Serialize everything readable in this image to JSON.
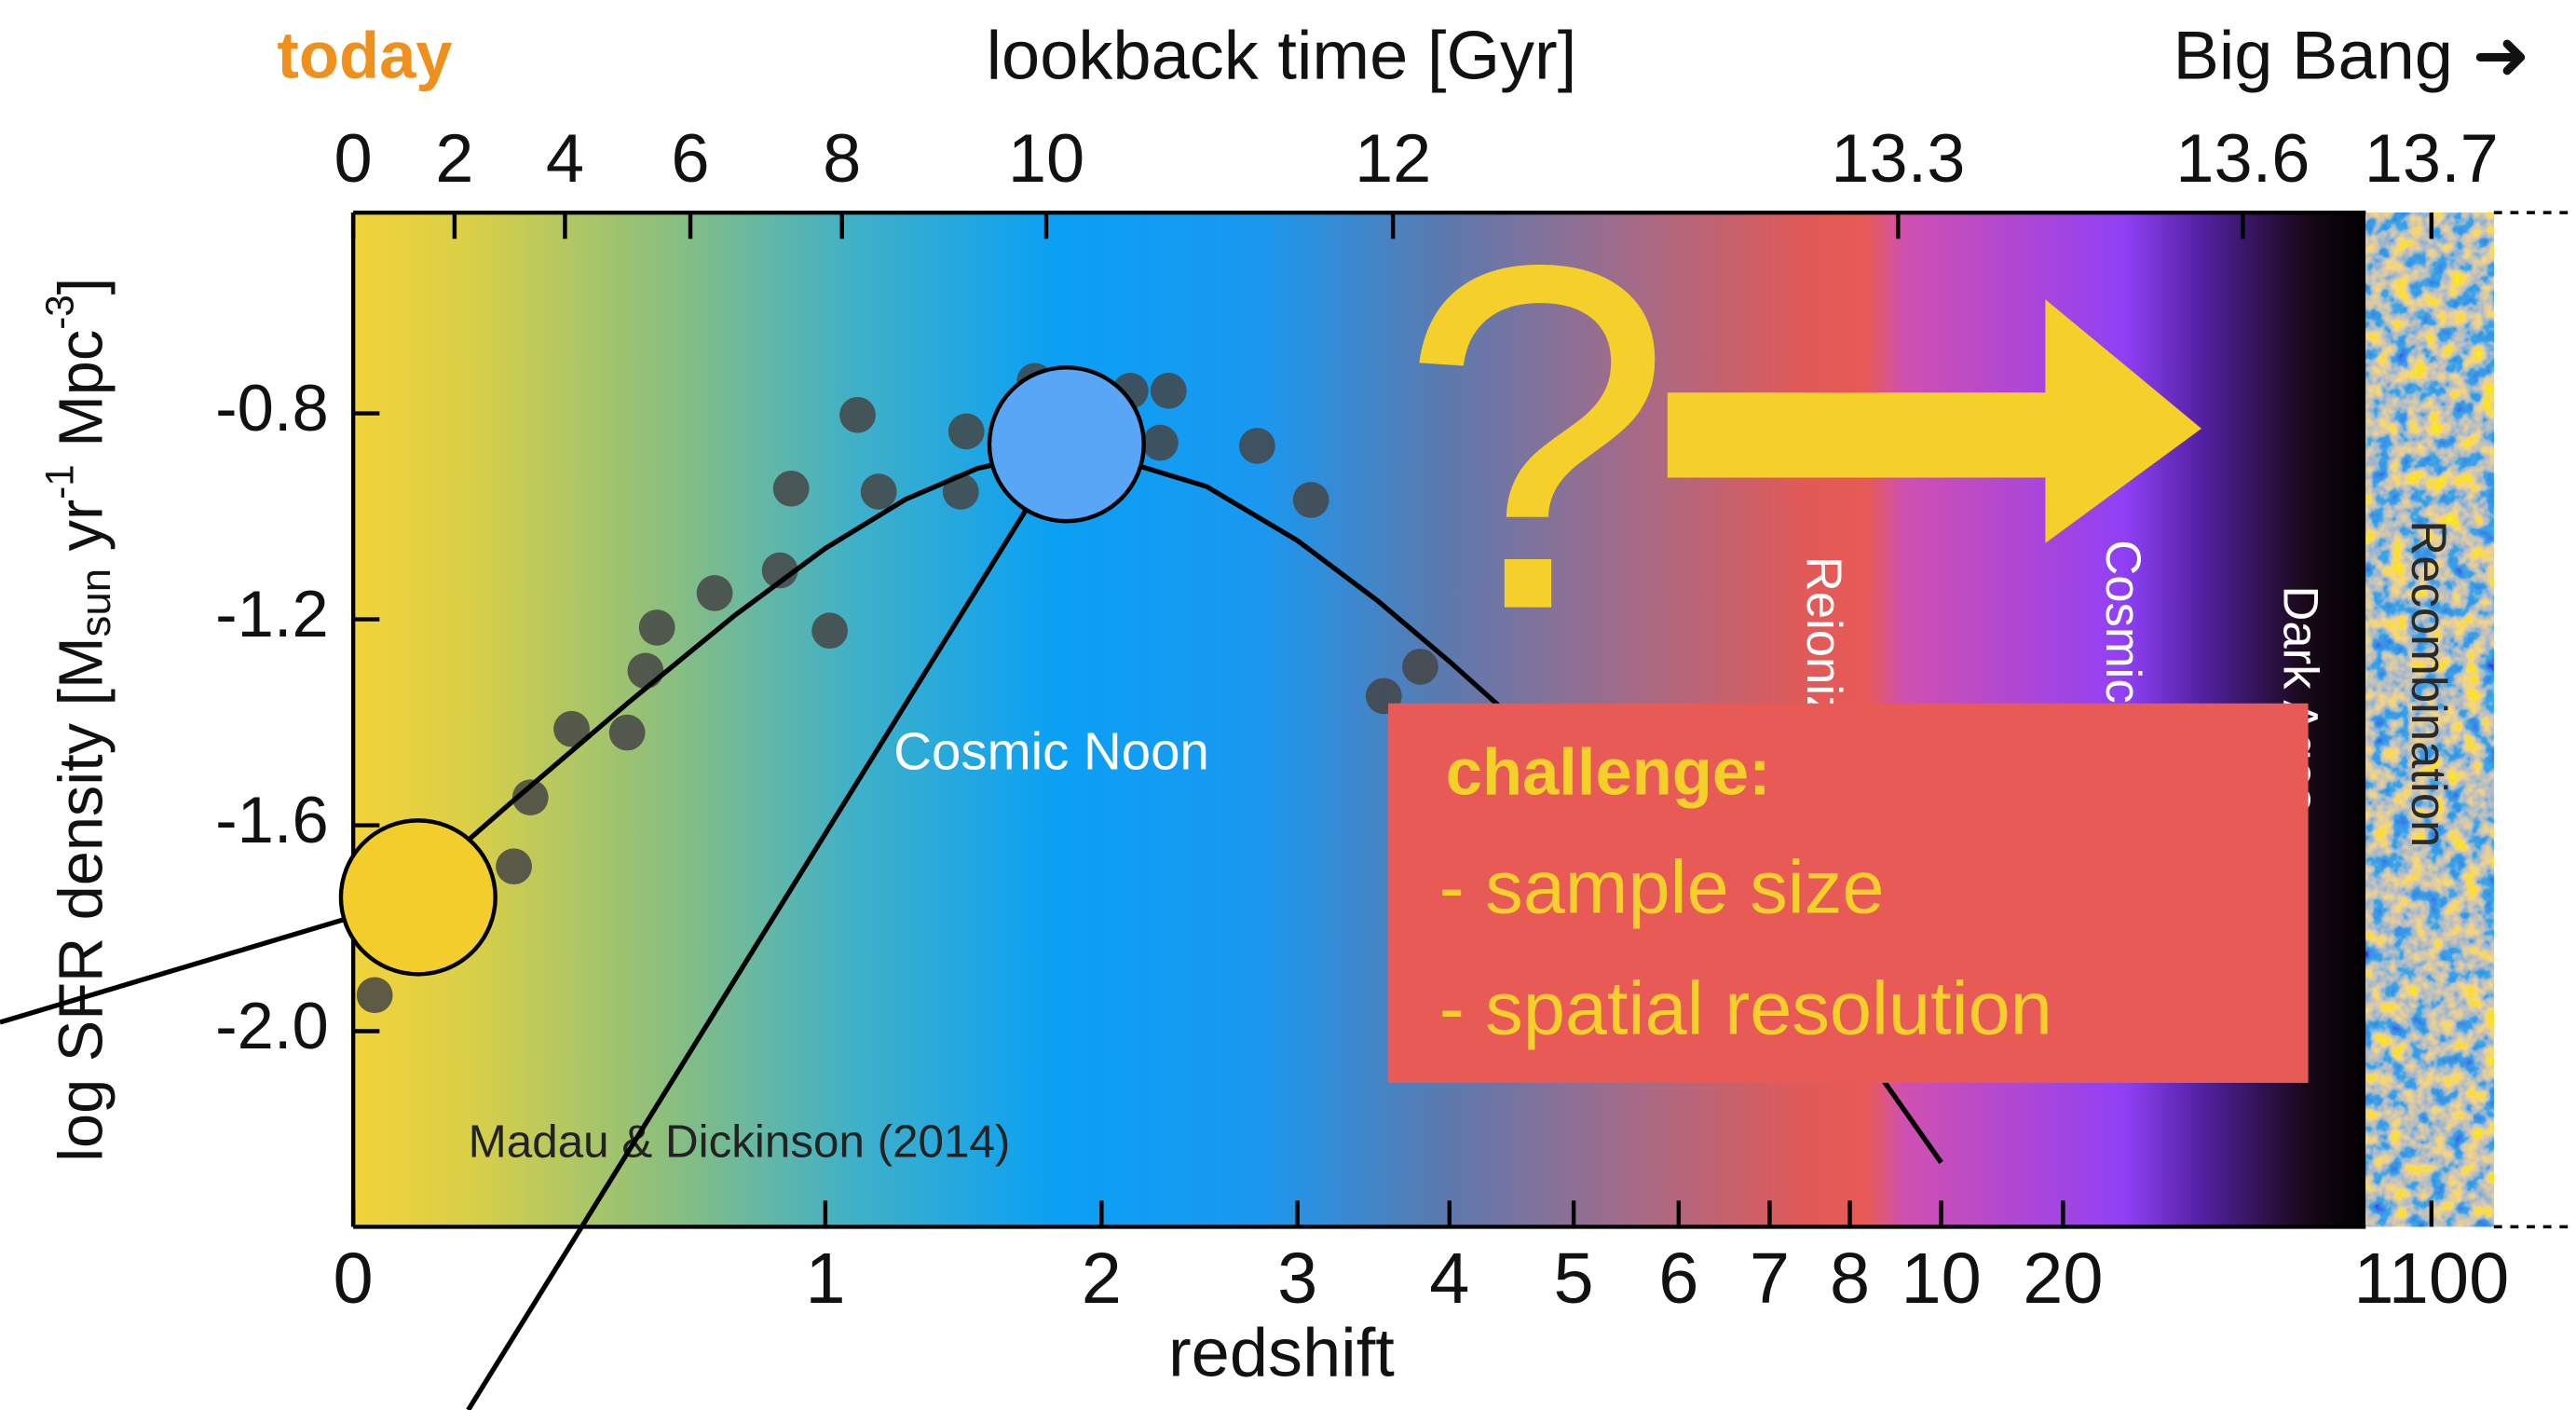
{
  "chart_data": {
    "type": "scatter",
    "xlabel": "redshift",
    "ylabel": [
      "log  SFR density  [M",
      "sun",
      " yr",
      "-1",
      " Mpc",
      "-3",
      "]"
    ],
    "x2label": "lookback time [Gyr]",
    "x2_left_label": "today",
    "x2_right_label": "Big Bang ➜",
    "xlim": [
      0,
      1100
    ],
    "xbreak": 8,
    "xticks": [
      0,
      1,
      2,
      3,
      4,
      5,
      6,
      7,
      8,
      10,
      20,
      1100
    ],
    "ylim": [
      -2.38,
      -0.41
    ],
    "yticks": [
      -0.8,
      -1.2,
      -1.6,
      {
        "value": -2,
        "label": "-2.0"
      }
    ],
    "x2lim": [
      0,
      13.7
    ],
    "x2ticks": [
      0,
      2,
      4,
      6,
      8,
      10,
      12,
      13.3,
      13.6,
      13.7
    ],
    "series": [
      {
        "color": "#454545",
        "x": [
          0.032,
          0.266,
          0.297,
          0.378,
          0.495,
          0.536,
          0.562,
          0.7,
          0.871,
          0.902,
          1.013,
          1.097,
          1.163,
          1.44,
          1.46,
          1.72,
          2.13,
          2.27,
          2.31,
          2.77,
          3.08,
          3.54,
          3.79
        ],
        "values": [
          -1.93,
          -1.68,
          -1.546,
          -1.413,
          -1.42,
          -1.3,
          -1.216,
          -1.149,
          -1.105,
          -0.946,
          -1.222,
          -0.803,
          -0.952,
          -0.952,
          -0.835,
          -0.737,
          -0.756,
          -0.857,
          -0.756,
          -0.863,
          -0.968,
          -1.349,
          -1.292
        ]
      }
    ],
    "curve": {
      "type": "line",
      "color": "#000000",
      "x": [
        0,
        0.25,
        0.5,
        0.75,
        1,
        1.25,
        1.5,
        1.75,
        2,
        2.5,
        3,
        3.5,
        4,
        5,
        6,
        7,
        8,
        10
      ],
      "values": [
        -1.825,
        -1.566,
        -1.36,
        -1.193,
        -1.062,
        -0.967,
        -0.907,
        -0.879,
        -0.88,
        -0.942,
        -1.047,
        -1.164,
        -1.282,
        -1.498,
        -1.688,
        -1.855,
        -2.003,
        -2.255
      ]
    },
    "highlights": [
      {
        "x": 0.1,
        "y": -1.74,
        "color": "#f3cd2b"
      },
      {
        "x": 1.85,
        "y": -0.86,
        "color": "#58a6f5"
      }
    ],
    "annotations": {
      "cosmic_noon": "Cosmic Noon",
      "citation": "Madau & Dickinson (2014)",
      "question": "?"
    },
    "eras": [
      "Reionization",
      "Cosmic Dawn",
      "Dark Ages",
      "Recombination"
    ],
    "challenge": {
      "heading": "challenge:",
      "items": [
        "- sample size",
        "- spatial resolution"
      ]
    }
  }
}
